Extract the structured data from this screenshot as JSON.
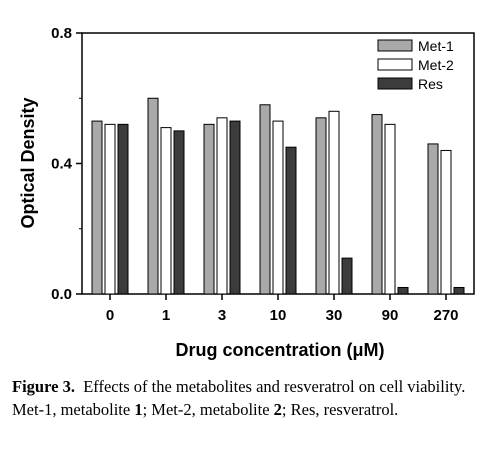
{
  "chart_data": {
    "type": "bar",
    "categories": [
      "0",
      "1",
      "3",
      "10",
      "30",
      "90",
      "270"
    ],
    "series": [
      {
        "name": "Met-1",
        "values": [
          0.53,
          0.6,
          0.52,
          0.58,
          0.54,
          0.55,
          0.46
        ],
        "color": "#a9a9a9"
      },
      {
        "name": "Met-2",
        "values": [
          0.52,
          0.51,
          0.54,
          0.53,
          0.56,
          0.52,
          0.44
        ],
        "color": "#ffffff"
      },
      {
        "name": "Res",
        "values": [
          0.52,
          0.5,
          0.53,
          0.45,
          0.11,
          0.02,
          0.02
        ],
        "color": "#3c3c3c"
      }
    ],
    "xlabel": "Drug concentration (μM)",
    "ylabel": "Optical Density",
    "ylim": [
      0.0,
      0.8
    ],
    "yticks": [
      0.0,
      0.4,
      0.8
    ],
    "ytick_labels": [
      "0.0",
      "0.4",
      "0.8"
    ],
    "legend_position": "top-right",
    "grid": false
  },
  "caption": {
    "label": "Figure 3.",
    "parts": [
      {
        "text": "Effects of the metabolites and resveratrol on cell viability. Met-1, metabolite ",
        "bold": false
      },
      {
        "text": "1",
        "bold": true
      },
      {
        "text": "; Met-2, metabolite ",
        "bold": false
      },
      {
        "text": "2",
        "bold": true
      },
      {
        "text": "; Res, resveratrol.",
        "bold": false
      }
    ]
  }
}
